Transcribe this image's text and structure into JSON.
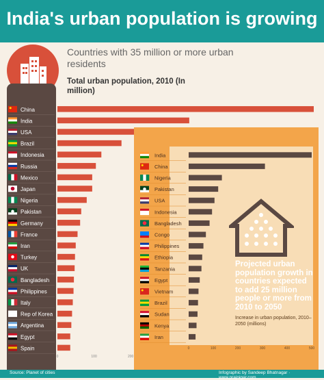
{
  "banner": {
    "title": "India's urban population is growing"
  },
  "subtitle": "Countries with 35 million or more urban residents",
  "footer": {
    "source": "Source: Planet of cities",
    "credit": "Infographic by Sandeep Bhatnagar · www.prajnigar.com"
  },
  "colors": {
    "teal": "#1a9b98",
    "red": "#d8503a",
    "brown": "#5a4842",
    "orange": "#f3a54a",
    "dark_bar": "#5a4842"
  },
  "chart_data": [
    {
      "type": "bar",
      "orientation": "horizontal",
      "title": "Total urban population, 2010 (In million)",
      "categories": [
        "China",
        "India",
        "USA",
        "Brazil",
        "Indonesia",
        "Russia",
        "Mexico",
        "Japan",
        "Nigeria",
        "Pakistan",
        "Germany",
        "France",
        "Iran",
        "Turkey",
        "UK",
        "Bangladesh",
        "Philippines",
        "Italy",
        "Rep of Korea",
        "Argentina",
        "Egypt",
        "Spain"
      ],
      "values": [
        700,
        360,
        250,
        175,
        120,
        105,
        95,
        95,
        80,
        65,
        62,
        55,
        50,
        48,
        47,
        45,
        44,
        42,
        40,
        38,
        35,
        35
      ],
      "xlim": [
        0,
        700
      ],
      "xticks": [
        "0",
        "100",
        "200",
        "300",
        "400",
        "500",
        "600",
        "700"
      ],
      "color": "#d8503a"
    },
    {
      "type": "bar",
      "orientation": "horizontal",
      "title": "Projected urban population growth in countries expected to add 25 million people or more from 2010 to 2050",
      "subtitle": "Increase in urban population, 2010–2050 (millions)",
      "categories": [
        "India",
        "China",
        "Nigeria",
        "Pakistan",
        "USA",
        "Indonesia",
        "Bangladesh",
        "Congo",
        "Philippines",
        "Ethiopia",
        "Tanzania",
        "Egypt",
        "Vietnam",
        "Brazil",
        "Sudan",
        "Kenya",
        "Iran"
      ],
      "values": [
        500,
        310,
        135,
        120,
        105,
        95,
        85,
        70,
        60,
        55,
        52,
        45,
        40,
        38,
        36,
        32,
        28
      ],
      "xlim": [
        0,
        500
      ],
      "xticks": [
        "0",
        "100",
        "200",
        "300",
        "400",
        "500"
      ],
      "color": "#5a4842"
    }
  ]
}
